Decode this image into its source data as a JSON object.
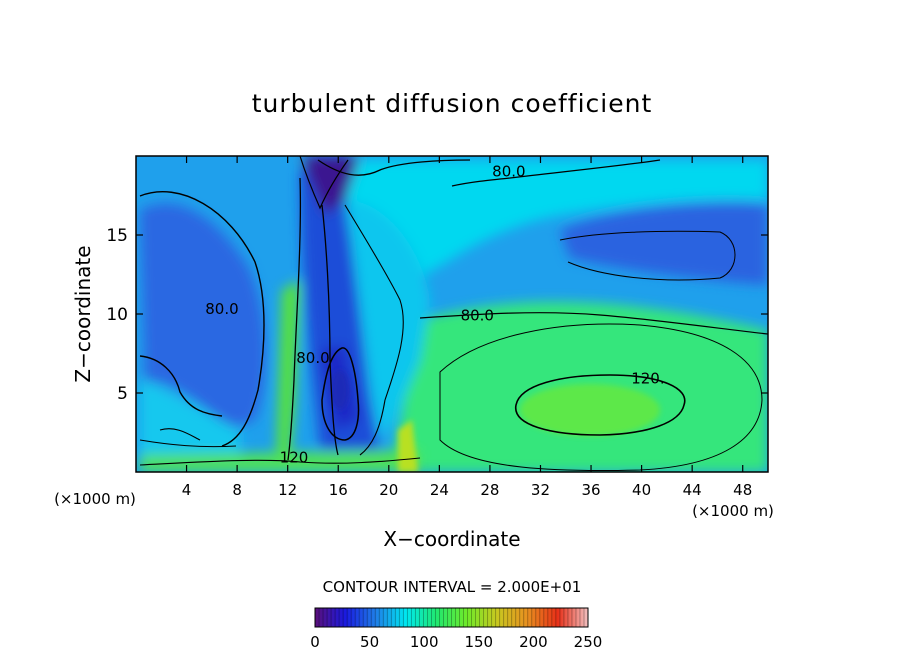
{
  "chart_data": {
    "type": "heatmap",
    "title": "turbulent diffusion coefficient",
    "xlabel": "X−coordinate",
    "ylabel": "Z−coordinate",
    "x_unit_left": "(×1000 m)",
    "x_unit_right": "(×1000 m)",
    "xlim": [
      0,
      50
    ],
    "ylim": [
      0,
      20
    ],
    "x_ticks": [
      4,
      8,
      12,
      16,
      20,
      24,
      28,
      32,
      36,
      40,
      44,
      48
    ],
    "y_ticks": [
      5,
      10,
      15
    ],
    "contour_interval_text": "CONTOUR INTERVAL = 2.000E+01",
    "contour_labels": [
      {
        "text": "80.0",
        "x": 29.5,
        "y": 18.7
      },
      {
        "text": "80.0",
        "x": 27.0,
        "y": 9.6
      },
      {
        "text": "80.0",
        "x": 6.8,
        "y": 10.0
      },
      {
        "text": "80.0",
        "x": 14.0,
        "y": 6.9
      },
      {
        "text": "120.",
        "x": 40.5,
        "y": 5.6
      },
      {
        "text": "120",
        "x": 12.5,
        "y": 0.6
      }
    ],
    "colorbar": {
      "min": 0,
      "max": 250,
      "tick_labels": [
        "0",
        "50",
        "100",
        "150",
        "200",
        "250"
      ],
      "stops": [
        "#5a0f7a",
        "#1a1ae0",
        "#1f7ee8",
        "#00e8f0",
        "#20e870",
        "#6fea2a",
        "#c8c820",
        "#e89020",
        "#e83018",
        "#f2c0c0"
      ]
    },
    "field_colors": {
      "low_core": "#3a0a8a",
      "deep_blue": "#1a3ad8",
      "mid_blue": "#2a78e6",
      "cyan": "#00e4f0",
      "green": "#32e87a",
      "bright_green": "#6fe830",
      "yellow_green": "#b6e020"
    }
  }
}
